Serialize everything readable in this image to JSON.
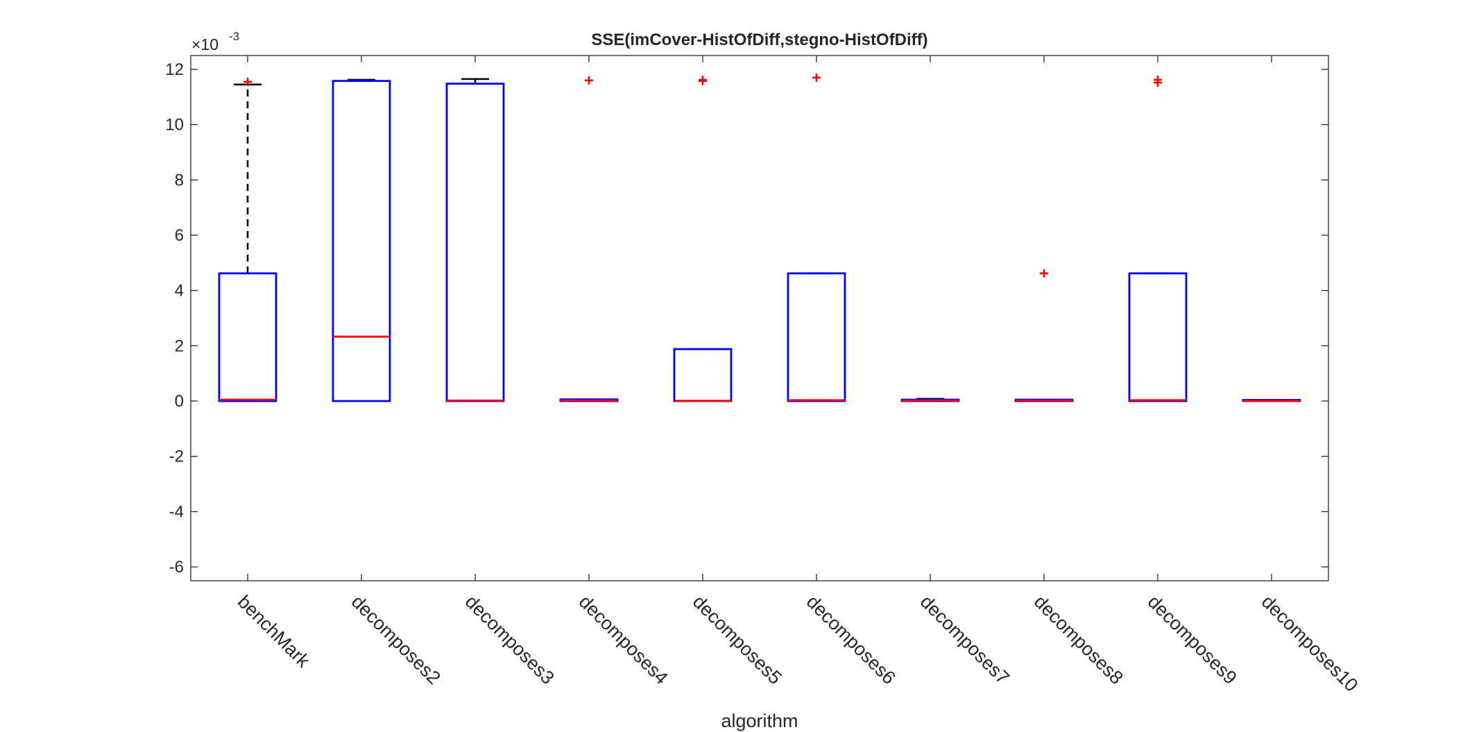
{
  "chart_data": {
    "type": "box",
    "title": "SSE(imCover-HistOfDiff,stegno-HistOfDiff)",
    "xlabel": "algorithm",
    "ylabel": "",
    "y_exponent_base": "×10",
    "y_exponent_power": "-3",
    "ylim": [
      -6.5,
      12.5
    ],
    "yticks": [
      -6,
      -4,
      -2,
      0,
      2,
      4,
      6,
      8,
      10,
      12
    ],
    "grid": false,
    "categories": [
      "benchMark",
      "decomposes2",
      "decomposes3",
      "decomposes4",
      "decomposes5",
      "decomposes6",
      "decomposes7",
      "decomposes8",
      "decomposes9",
      "decomposes10"
    ],
    "boxes": [
      {
        "q1": 0.0,
        "median": 0.05,
        "q3": 4.62,
        "whisker_low": 0.0,
        "whisker_high": 11.45,
        "outliers": [
          11.55
        ]
      },
      {
        "q1": 0.0,
        "median": 2.33,
        "q3": 11.58,
        "whisker_low": 0.0,
        "whisker_high": 11.62,
        "outliers": []
      },
      {
        "q1": 0.0,
        "median": 0.02,
        "q3": 11.48,
        "whisker_low": 0.0,
        "whisker_high": 11.65,
        "outliers": []
      },
      {
        "q1": 0.0,
        "median": 0.02,
        "q3": 0.06,
        "whisker_low": 0.0,
        "whisker_high": 0.06,
        "outliers": [
          11.6
        ]
      },
      {
        "q1": 0.0,
        "median": 0.01,
        "q3": 1.88,
        "whisker_low": 0.0,
        "whisker_high": 1.88,
        "outliers": [
          11.58,
          11.62
        ]
      },
      {
        "q1": 0.0,
        "median": 0.03,
        "q3": 4.62,
        "whisker_low": 0.0,
        "whisker_high": 4.62,
        "outliers": [
          11.7
        ]
      },
      {
        "q1": 0.0,
        "median": 0.02,
        "q3": 0.05,
        "whisker_low": 0.0,
        "whisker_high": 0.08,
        "outliers": []
      },
      {
        "q1": 0.0,
        "median": 0.02,
        "q3": 0.05,
        "whisker_low": 0.0,
        "whisker_high": 0.05,
        "outliers": [
          4.62
        ]
      },
      {
        "q1": 0.0,
        "median": 0.03,
        "q3": 4.62,
        "whisker_low": 0.0,
        "whisker_high": 4.62,
        "outliers": [
          11.52,
          11.62
        ]
      },
      {
        "q1": 0.0,
        "median": 0.01,
        "q3": 0.04,
        "whisker_low": 0.0,
        "whisker_high": 0.04,
        "outliers": []
      }
    ],
    "colors": {
      "box": "#0000ff",
      "median": "#ff0000",
      "whisker": "#000000",
      "outlier": "#ff0000",
      "axis": "#262626"
    }
  }
}
